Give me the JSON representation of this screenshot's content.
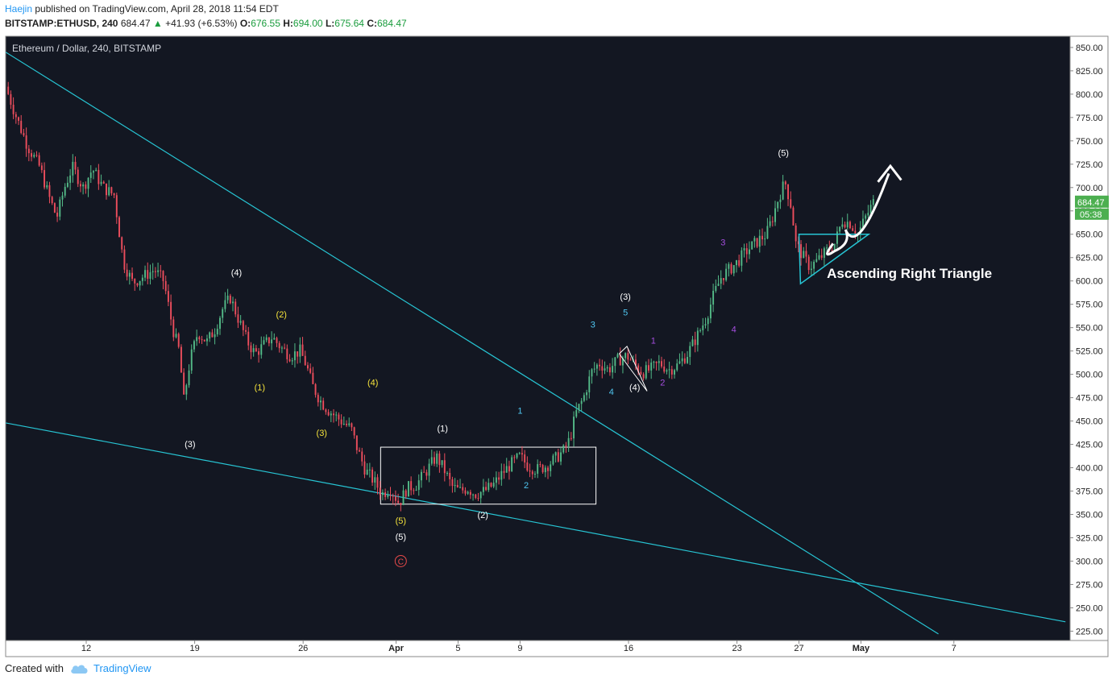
{
  "header": {
    "author": "Haejin",
    "published_text": "published on TradingView.com, April 28, 2018 11:54 EDT",
    "symbol": "BITSTAMP:ETHUSD, 240",
    "last": "684.47",
    "up_arrow": "▲",
    "change": "+41.93 (+6.53%)",
    "o_label": "O:",
    "o_val": "676.55",
    "h_label": "H:",
    "h_val": "694.00",
    "l_label": "L:",
    "l_val": "675.64",
    "c_label": "C:",
    "c_val": "684.47"
  },
  "footer": {
    "created_with": "Created with",
    "brand": "TradingView",
    "brand_icon": "cloud-logo-icon"
  },
  "colors": {
    "background": "#131722",
    "up": "#53b987",
    "down": "#eb4d5c",
    "trendline": "#27c5d4",
    "yellow": "#f5e33b",
    "cyan": "#4fc6f0",
    "purple": "#a64ee0",
    "white": "#ffffff",
    "red_circle": "#e84a4a",
    "price_tag": "#4caf50"
  },
  "chart_data": {
    "type": "candlestick",
    "title": "Ethereum / Dollar, 240, BITSTAMP",
    "ylim": [
      215,
      862
    ],
    "y_ticks": [
      "850.00",
      "825.00",
      "800.00",
      "775.00",
      "750.00",
      "725.00",
      "700.00",
      "675.00",
      "650.00",
      "625.00",
      "600.00",
      "575.00",
      "550.00",
      "525.00",
      "500.00",
      "475.00",
      "450.00",
      "425.00",
      "400.00",
      "375.00",
      "350.00",
      "325.00",
      "300.00",
      "275.00",
      "250.00",
      "225.00"
    ],
    "x_ticks": [
      {
        "label": "12",
        "day": 12
      },
      {
        "label": "19",
        "day": 19
      },
      {
        "label": "26",
        "day": 26
      },
      {
        "label": "Apr",
        "day": 32
      },
      {
        "label": "5",
        "day": 36
      },
      {
        "label": "9",
        "day": 40
      },
      {
        "label": "16",
        "day": 47
      },
      {
        "label": "23",
        "day": 54
      },
      {
        "label": "27",
        "day": 58
      },
      {
        "label": "May",
        "day": 62
      },
      {
        "label": "7",
        "day": 68
      }
    ],
    "x_axis_note": "x values are days counted from March 1, 2018 (Apr 1 = 32)",
    "xlim": [
      6.8,
      75.5
    ],
    "last_price": "684.47",
    "countdown": "05:38",
    "price_path": [
      [
        6.8,
        808
      ],
      [
        7.5,
        775
      ],
      [
        8.2,
        745
      ],
      [
        9.0,
        722
      ],
      [
        9.6,
        690
      ],
      [
        10.1,
        668
      ],
      [
        10.6,
        700
      ],
      [
        11.1,
        722
      ],
      [
        11.8,
        700
      ],
      [
        12.4,
        720
      ],
      [
        13.1,
        700
      ],
      [
        13.8,
        692
      ],
      [
        14.4,
        620
      ],
      [
        15.0,
        598
      ],
      [
        15.7,
        605
      ],
      [
        16.4,
        612
      ],
      [
        17.0,
        600
      ],
      [
        17.6,
        548
      ],
      [
        18.0,
        525
      ],
      [
        18.3,
        472
      ],
      [
        18.7,
        515
      ],
      [
        19.2,
        545
      ],
      [
        19.8,
        535
      ],
      [
        20.3,
        548
      ],
      [
        20.8,
        570
      ],
      [
        21.3,
        582
      ],
      [
        21.8,
        560
      ],
      [
        22.4,
        535
      ],
      [
        22.9,
        522
      ],
      [
        23.5,
        532
      ],
      [
        24.0,
        540
      ],
      [
        24.6,
        528
      ],
      [
        25.2,
        520
      ],
      [
        25.8,
        525
      ],
      [
        26.2,
        510
      ],
      [
        26.6,
        488
      ],
      [
        27.1,
        472
      ],
      [
        27.6,
        462
      ],
      [
        28.1,
        455
      ],
      [
        28.6,
        448
      ],
      [
        29.1,
        442
      ],
      [
        29.5,
        420
      ],
      [
        30.0,
        398
      ],
      [
        30.6,
        385
      ],
      [
        31.1,
        372
      ],
      [
        31.6,
        378
      ],
      [
        32.2,
        362
      ],
      [
        32.7,
        378
      ],
      [
        33.3,
        382
      ],
      [
        33.9,
        395
      ],
      [
        34.6,
        412
      ],
      [
        35.1,
        398
      ],
      [
        35.6,
        380
      ],
      [
        36.1,
        375
      ],
      [
        36.6,
        378
      ],
      [
        37.1,
        372
      ],
      [
        37.7,
        375
      ],
      [
        38.3,
        382
      ],
      [
        38.9,
        395
      ],
      [
        39.5,
        405
      ],
      [
        40.0,
        412
      ],
      [
        40.5,
        402
      ],
      [
        41.1,
        398
      ],
      [
        41.7,
        402
      ],
      [
        42.3,
        410
      ],
      [
        42.8,
        418
      ],
      [
        43.2,
        430
      ],
      [
        43.6,
        458
      ],
      [
        44.1,
        475
      ],
      [
        44.6,
        502
      ],
      [
        45.1,
        512
      ],
      [
        45.7,
        505
      ],
      [
        46.3,
        515
      ],
      [
        46.9,
        520
      ],
      [
        47.4,
        510
      ],
      [
        47.9,
        502
      ],
      [
        48.4,
        505
      ],
      [
        49.0,
        512
      ],
      [
        49.6,
        505
      ],
      [
        50.2,
        510
      ],
      [
        50.8,
        522
      ],
      [
        51.4,
        540
      ],
      [
        52.0,
        560
      ],
      [
        52.5,
        585
      ],
      [
        53.0,
        605
      ],
      [
        53.5,
        612
      ],
      [
        54.0,
        620
      ],
      [
        54.5,
        630
      ],
      [
        55.0,
        638
      ],
      [
        55.5,
        645
      ],
      [
        55.9,
        650
      ],
      [
        56.3,
        668
      ],
      [
        56.7,
        690
      ],
      [
        57.1,
        706
      ],
      [
        57.5,
        680
      ],
      [
        57.8,
        640
      ],
      [
        58.2,
        628
      ],
      [
        58.7,
        615
      ],
      [
        59.2,
        622
      ],
      [
        59.8,
        632
      ],
      [
        60.3,
        640
      ],
      [
        60.8,
        665
      ],
      [
        61.3,
        662
      ],
      [
        61.8,
        650
      ],
      [
        62.3,
        668
      ],
      [
        62.8,
        684
      ]
    ],
    "trendlines": [
      {
        "from": [
          6.8,
          845
        ],
        "to": [
          67.0,
          222
        ]
      },
      {
        "from": [
          6.8,
          448
        ],
        "to": [
          75.2,
          235
        ]
      }
    ],
    "labels": [
      {
        "text": "(3)",
        "day": 18.7,
        "price": 422,
        "color": "white"
      },
      {
        "text": "(4)",
        "day": 21.7,
        "price": 606,
        "color": "white"
      },
      {
        "text": "(1)",
        "day": 23.2,
        "price": 483,
        "color": "yellow"
      },
      {
        "text": "(2)",
        "day": 24.6,
        "price": 561,
        "color": "yellow"
      },
      {
        "text": "(3)",
        "day": 27.2,
        "price": 434,
        "color": "yellow"
      },
      {
        "text": "(4)",
        "day": 30.5,
        "price": 488,
        "color": "yellow"
      },
      {
        "text": "(5)",
        "day": 32.3,
        "price": 340,
        "color": "yellow"
      },
      {
        "text": "(5)",
        "day": 32.3,
        "price": 323,
        "color": "white"
      },
      {
        "text": "(1)",
        "day": 35.0,
        "price": 439,
        "color": "white"
      },
      {
        "text": "(2)",
        "day": 37.6,
        "price": 346,
        "color": "white"
      },
      {
        "text": "1",
        "day": 40.0,
        "price": 458,
        "color": "cyan"
      },
      {
        "text": "2",
        "day": 40.4,
        "price": 378,
        "color": "cyan"
      },
      {
        "text": "3",
        "day": 44.7,
        "price": 550,
        "color": "cyan"
      },
      {
        "text": "4",
        "day": 45.9,
        "price": 478,
        "color": "cyan"
      },
      {
        "text": "5",
        "day": 46.8,
        "price": 563,
        "color": "cyan"
      },
      {
        "text": "(3)",
        "day": 46.8,
        "price": 580,
        "color": "white"
      },
      {
        "text": "(4)",
        "day": 47.4,
        "price": 483,
        "color": "white"
      },
      {
        "text": "1",
        "day": 48.6,
        "price": 533,
        "color": "purple"
      },
      {
        "text": "2",
        "day": 49.2,
        "price": 488,
        "color": "purple"
      },
      {
        "text": "3",
        "day": 53.1,
        "price": 638,
        "color": "purple"
      },
      {
        "text": "4",
        "day": 53.8,
        "price": 545,
        "color": "purple"
      },
      {
        "text": "(5)",
        "day": 57.0,
        "price": 734,
        "color": "white"
      }
    ],
    "annotations": {
      "triangle_text": "Ascending Right Triangle",
      "circled_label": "C",
      "box": {
        "day_from": 31.0,
        "day_to": 44.9,
        "price_from": 361,
        "price_to": 422
      }
    }
  }
}
